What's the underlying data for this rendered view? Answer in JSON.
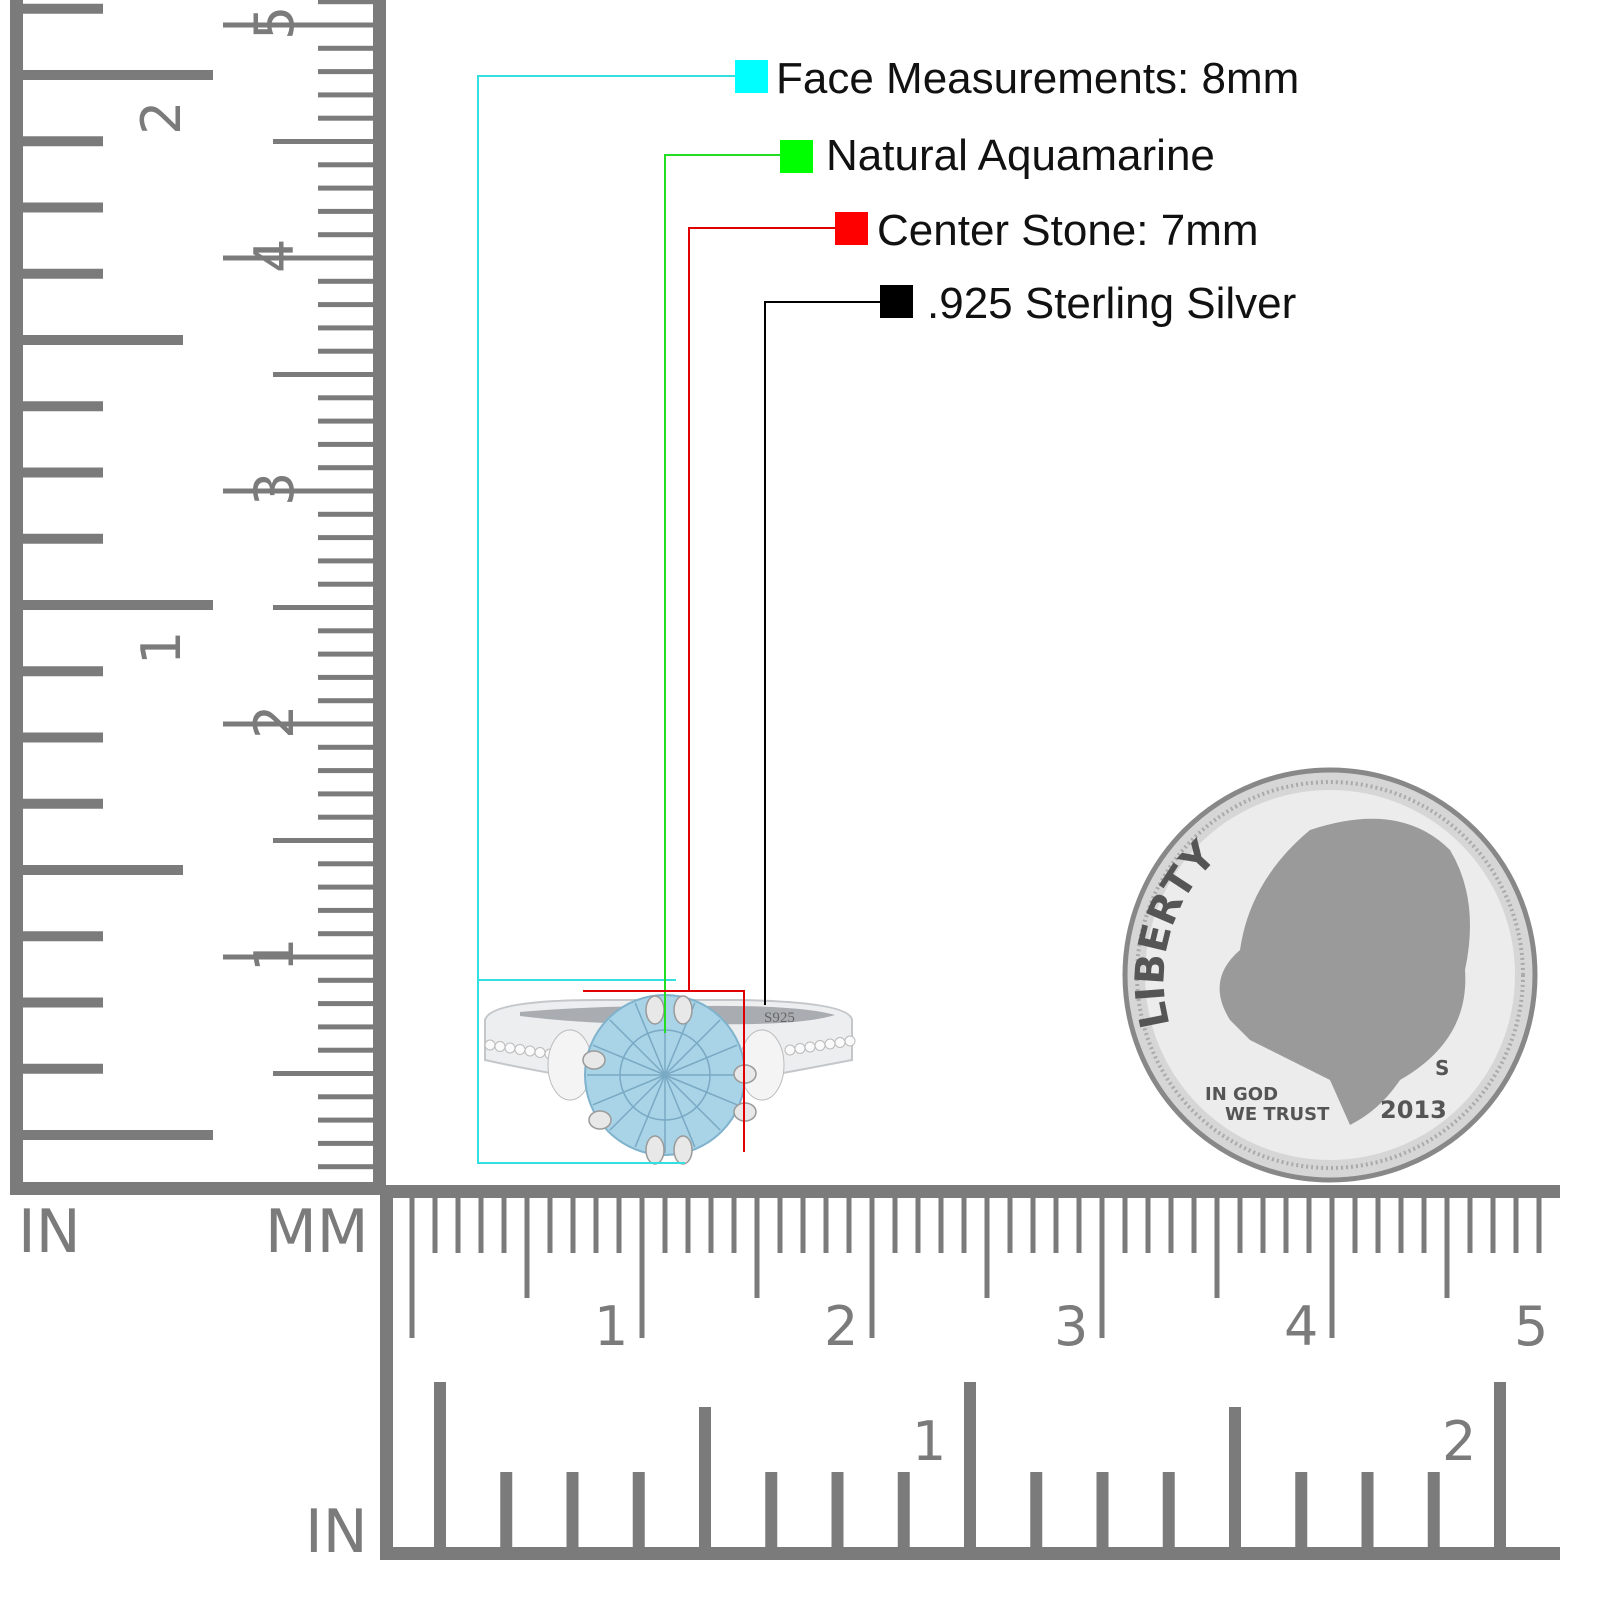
{
  "callouts": [
    {
      "label": "Face Measurements: 8mm",
      "color": "#00ffff"
    },
    {
      "label": "Natural Aquamarine",
      "color": "#00ff00"
    },
    {
      "label": "Center Stone: 7mm",
      "color": "#ff0000"
    },
    {
      "label": ".925 Sterling Silver",
      "color": "#000000"
    }
  ],
  "rulers": {
    "color": "#7b7b7b",
    "left": {
      "inch_unit": "IN",
      "mm_unit": "MM",
      "mm_numbers": [
        "1",
        "2",
        "3",
        "4",
        "5"
      ],
      "inch_numbers": [
        "1",
        "2"
      ]
    },
    "bottom": {
      "mm_numbers": [
        "1",
        "2",
        "3",
        "4",
        "5"
      ],
      "inch_numbers": [
        "1",
        "2"
      ],
      "inch_unit": "IN"
    }
  },
  "ring": {
    "stamp": "S925",
    "stone_color": "#a9d3e6",
    "metal_color": "#e4e6e8"
  },
  "coin": {
    "legend": "LIBERTY",
    "motto_line1": "IN GOD",
    "motto_line2": "WE TRUST",
    "year": "2013",
    "mint_mark": "S"
  }
}
